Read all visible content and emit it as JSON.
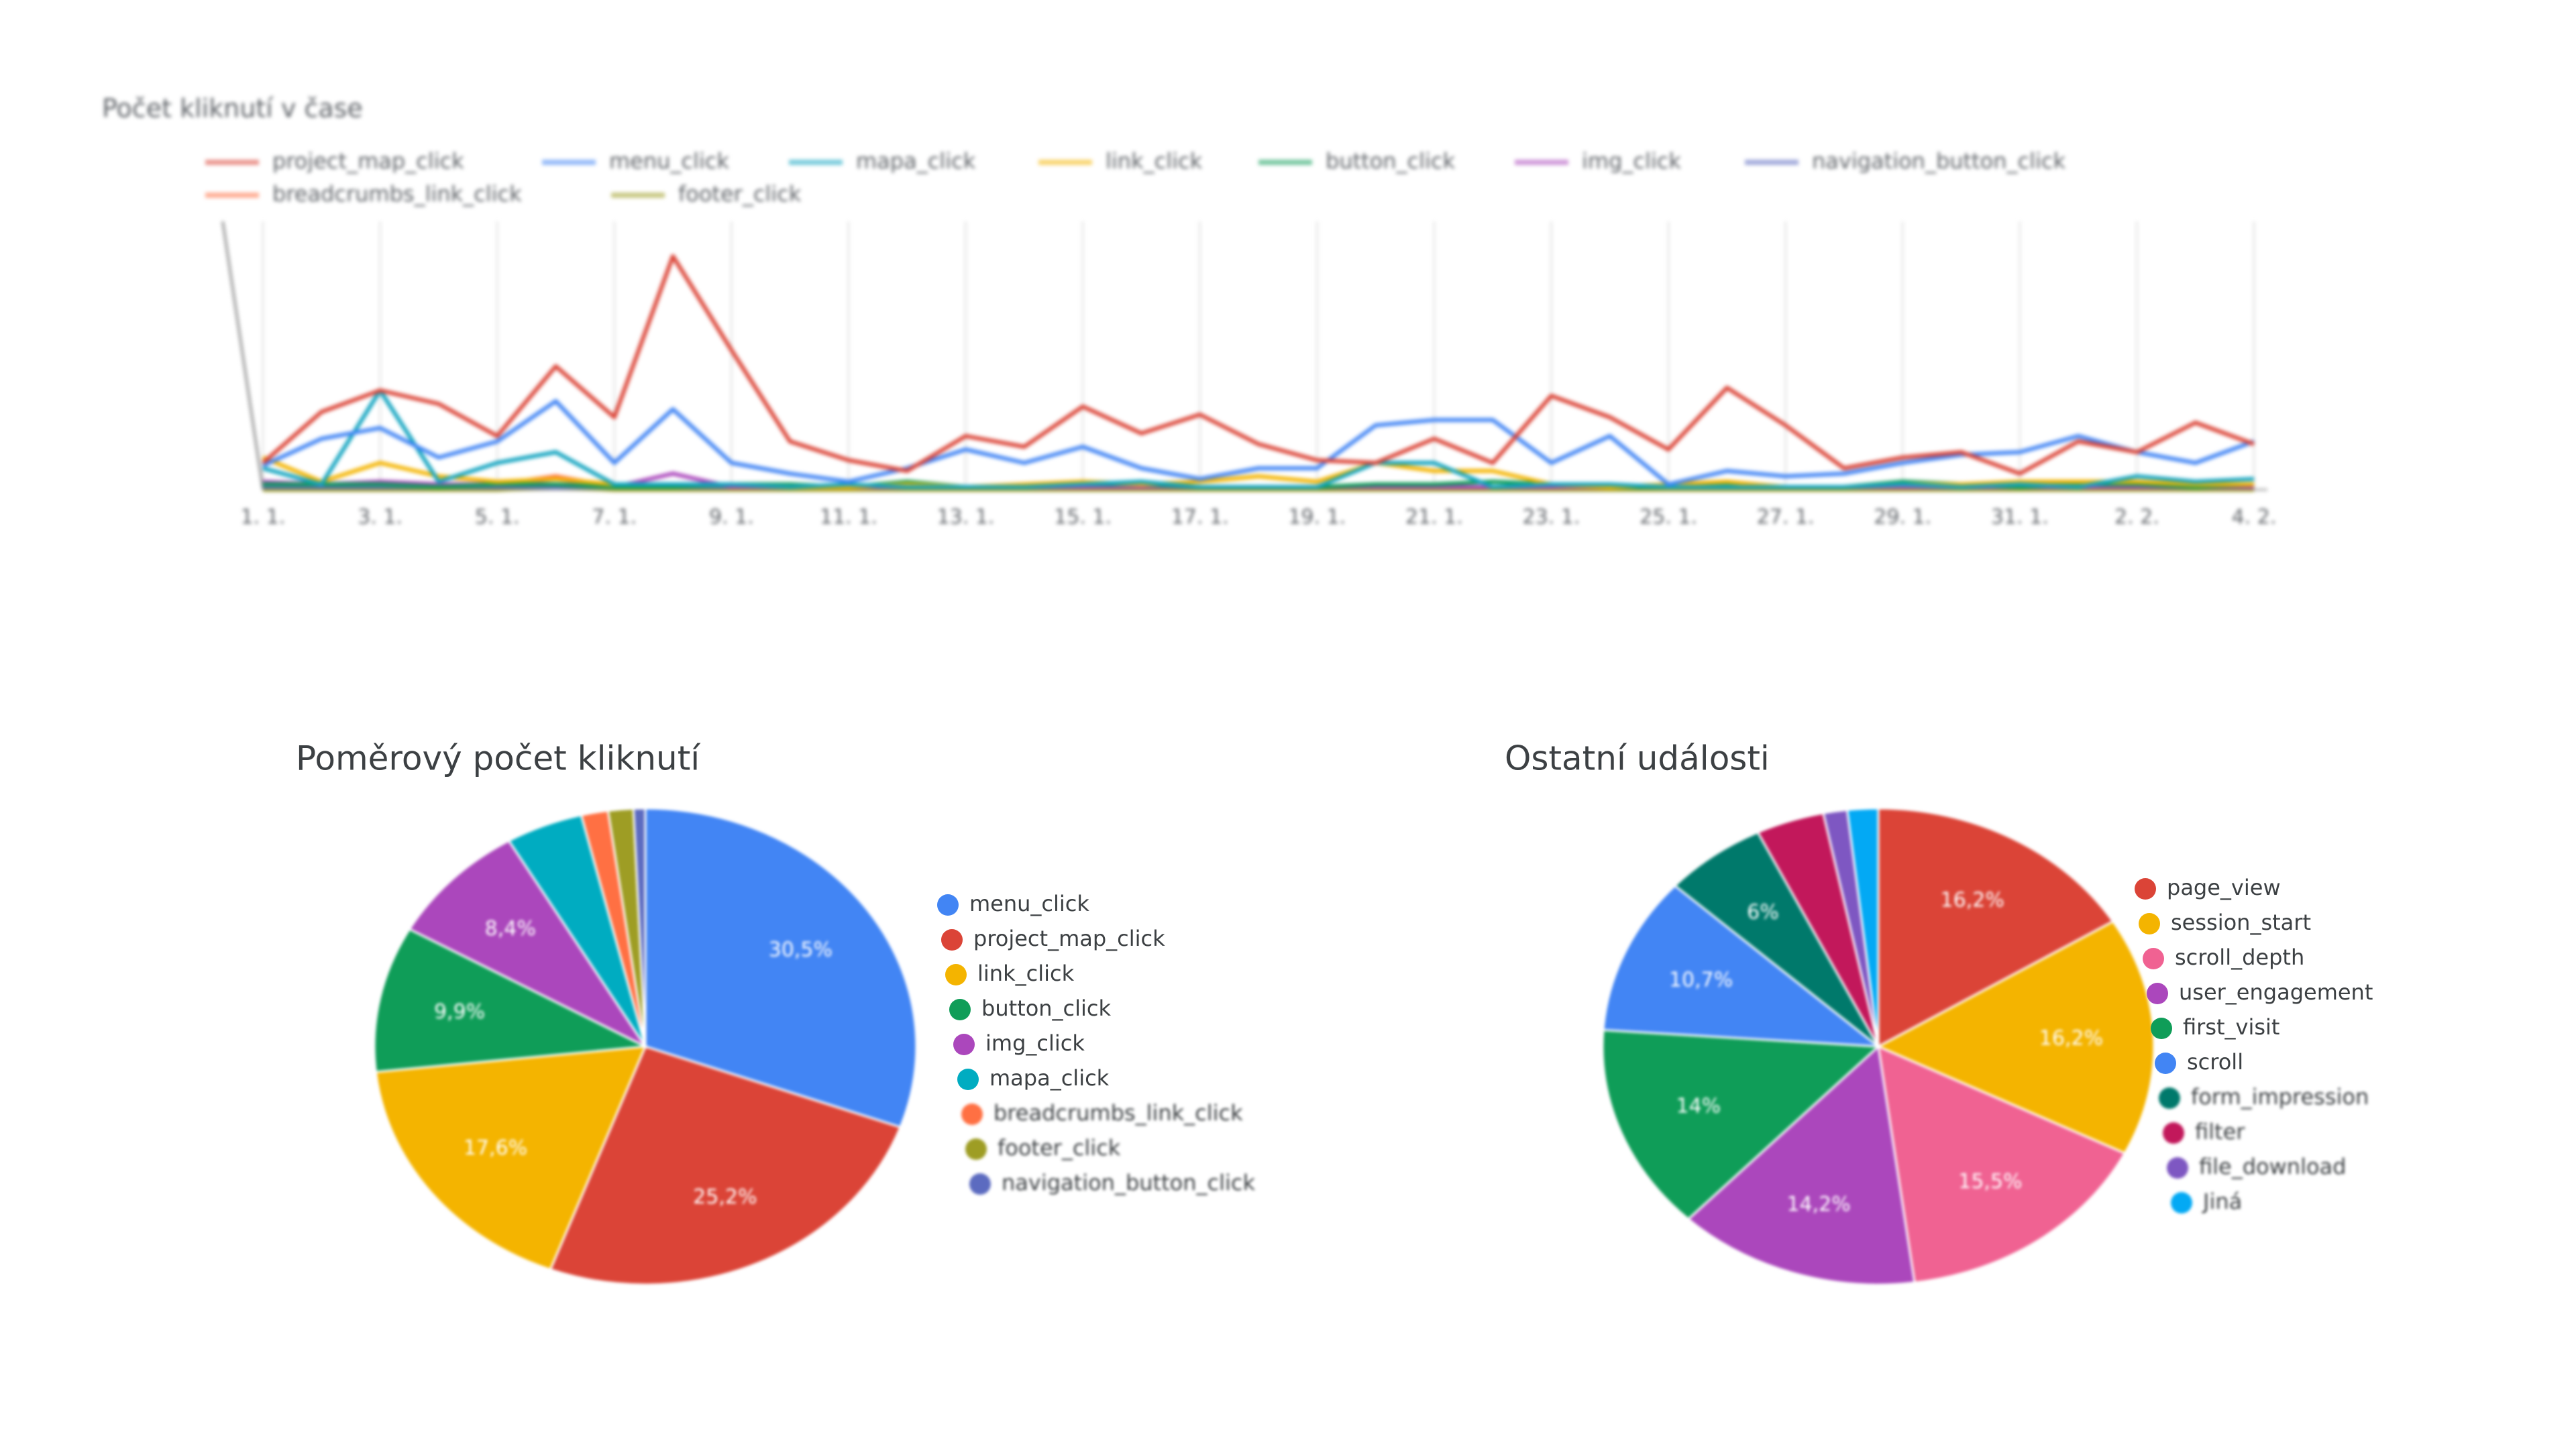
{
  "chart_data": [
    {
      "type": "line",
      "title": "Počet kliknutí v čase",
      "categories": [
        "1. 1.",
        null,
        "3. 1.",
        null,
        "5. 1.",
        null,
        "7. 1.",
        null,
        "9. 1.",
        null,
        "11. 1.",
        null,
        "13. 1.",
        null,
        "15. 1.",
        null,
        "17. 1.",
        null,
        "19. 1.",
        null,
        "21. 1.",
        null,
        "23. 1.",
        null,
        "25. 1.",
        null,
        "27. 1.",
        null,
        "29. 1.",
        null,
        "31. 1.",
        null,
        "2. 2.",
        null,
        "4. 2."
      ],
      "ylim": [
        0,
        100
      ],
      "grid": true,
      "series": [
        {
          "name": "project_map_click",
          "color": "#db4437",
          "values": [
            10,
            29,
            37,
            32,
            20,
            46,
            27,
            87,
            52,
            18,
            11,
            7,
            20,
            16,
            31,
            21,
            28,
            17,
            11,
            10,
            19,
            10,
            35,
            27,
            15,
            38,
            24,
            8,
            12,
            14,
            6,
            18,
            14,
            25,
            17
          ]
        },
        {
          "name": "menu_click",
          "color": "#4285f4",
          "values": [
            9,
            19,
            23,
            12,
            18,
            33,
            10,
            30,
            10,
            6,
            3,
            8,
            15,
            10,
            16,
            8,
            4,
            8,
            8,
            24,
            26,
            26,
            10,
            20,
            2,
            7,
            5,
            6,
            10,
            13,
            14,
            20,
            14,
            10,
            18
          ]
        },
        {
          "name": "mapa_click",
          "color": "#12a4c0",
          "values": [
            8,
            2,
            37,
            3,
            10,
            14,
            2,
            2,
            2,
            1,
            2,
            1,
            1,
            1,
            2,
            3,
            1,
            1,
            1,
            10,
            10,
            1,
            2,
            2,
            1,
            1,
            1,
            1,
            2,
            1,
            2,
            1,
            5,
            3,
            4
          ]
        },
        {
          "name": "link_click",
          "color": "#f4b400",
          "values": [
            12,
            3,
            10,
            5,
            3,
            4,
            2,
            2,
            2,
            1,
            1,
            2,
            1,
            2,
            3,
            2,
            3,
            5,
            3,
            10,
            7,
            7,
            2,
            1,
            2,
            3,
            1,
            1,
            2,
            2,
            3,
            3,
            3,
            2,
            2
          ]
        },
        {
          "name": "button_click",
          "color": "#0f9d58",
          "values": [
            2,
            2,
            2,
            1,
            2,
            2,
            1,
            1,
            2,
            2,
            1,
            3,
            1,
            1,
            2,
            2,
            1,
            1,
            1,
            2,
            2,
            3,
            2,
            1,
            1,
            2,
            1,
            1,
            3,
            2,
            1,
            2,
            2,
            1,
            2
          ]
        },
        {
          "name": "img_click",
          "color": "#ab47bc",
          "values": [
            3,
            2,
            3,
            2,
            2,
            4,
            1,
            6,
            1,
            1,
            1,
            1,
            1,
            1,
            1,
            1,
            1,
            1,
            1,
            1,
            1,
            1,
            1,
            1,
            1,
            1,
            1,
            1,
            1,
            1,
            1,
            1,
            1,
            1,
            1
          ]
        },
        {
          "name": "navigation_button_click",
          "color": "#5c6bc0",
          "values": [
            1,
            1,
            1,
            1,
            1,
            1,
            1,
            1,
            1,
            1,
            1,
            1,
            1,
            1,
            1,
            1,
            1,
            1,
            1,
            1,
            1,
            1,
            1,
            1,
            1,
            1,
            1,
            1,
            1,
            1,
            1,
            1,
            1,
            1,
            1
          ]
        },
        {
          "name": "breadcrumbs_link_click",
          "color": "#ff7043",
          "values": [
            1,
            1,
            1,
            1,
            2,
            5,
            1,
            1,
            1,
            1,
            1,
            1,
            1,
            1,
            1,
            1,
            1,
            1,
            1,
            1,
            1,
            1,
            1,
            1,
            1,
            1,
            1,
            1,
            1,
            1,
            1,
            1,
            1,
            1,
            1
          ]
        },
        {
          "name": "footer_click",
          "color": "#9e9d24",
          "values": [
            0,
            0,
            0,
            0,
            0,
            1,
            0,
            0,
            0,
            0,
            0,
            0,
            0,
            0,
            0,
            0,
            0,
            0,
            0,
            0,
            0,
            0,
            0,
            0,
            0,
            0,
            0,
            0,
            0,
            0,
            0,
            0,
            0,
            0,
            0
          ]
        }
      ]
    },
    {
      "type": "pie",
      "title": "Poměrový počet kliknutí",
      "categories": [
        "menu_click",
        "project_map_click",
        "link_click",
        "button_click",
        "img_click",
        "mapa_click",
        "breadcrumbs_link_click",
        "footer_click",
        "navigation_button_click"
      ],
      "values": [
        30.5,
        25.2,
        17.6,
        9.9,
        8.4,
        4.6,
        1.6,
        1.5,
        0.7
      ],
      "value_labels": [
        "30,5%",
        "25,2%",
        "17,6%",
        "9,9%",
        "8,4%",
        null,
        null,
        null,
        null
      ],
      "colors": [
        "#4285f4",
        "#db4437",
        "#f4b400",
        "#0f9d58",
        "#ab47bc",
        "#00acc1",
        "#ff7043",
        "#9e9d24",
        "#5c6bc0"
      ]
    },
    {
      "type": "pie",
      "title": "Ostatní události",
      "categories": [
        "page_view",
        "session_start",
        "scroll_depth",
        "user_engagement",
        "first_visit",
        "scroll",
        "form_impression",
        "filter",
        "file_download",
        "Jiná"
      ],
      "values": [
        16.2,
        16.2,
        15.5,
        14.2,
        14,
        10.7,
        6,
        4,
        1.4,
        1.8
      ],
      "value_labels": [
        "16,2%",
        "16,2%",
        "15,5%",
        "14,2%",
        "14%",
        "10,7%",
        "6%",
        null,
        null,
        null
      ],
      "colors": [
        "#db4437",
        "#f4b400",
        "#f06292",
        "#ab47bc",
        "#0f9d58",
        "#4285f4",
        "#00796b",
        "#c2185b",
        "#7e57c2",
        "#03a9f4"
      ]
    }
  ]
}
